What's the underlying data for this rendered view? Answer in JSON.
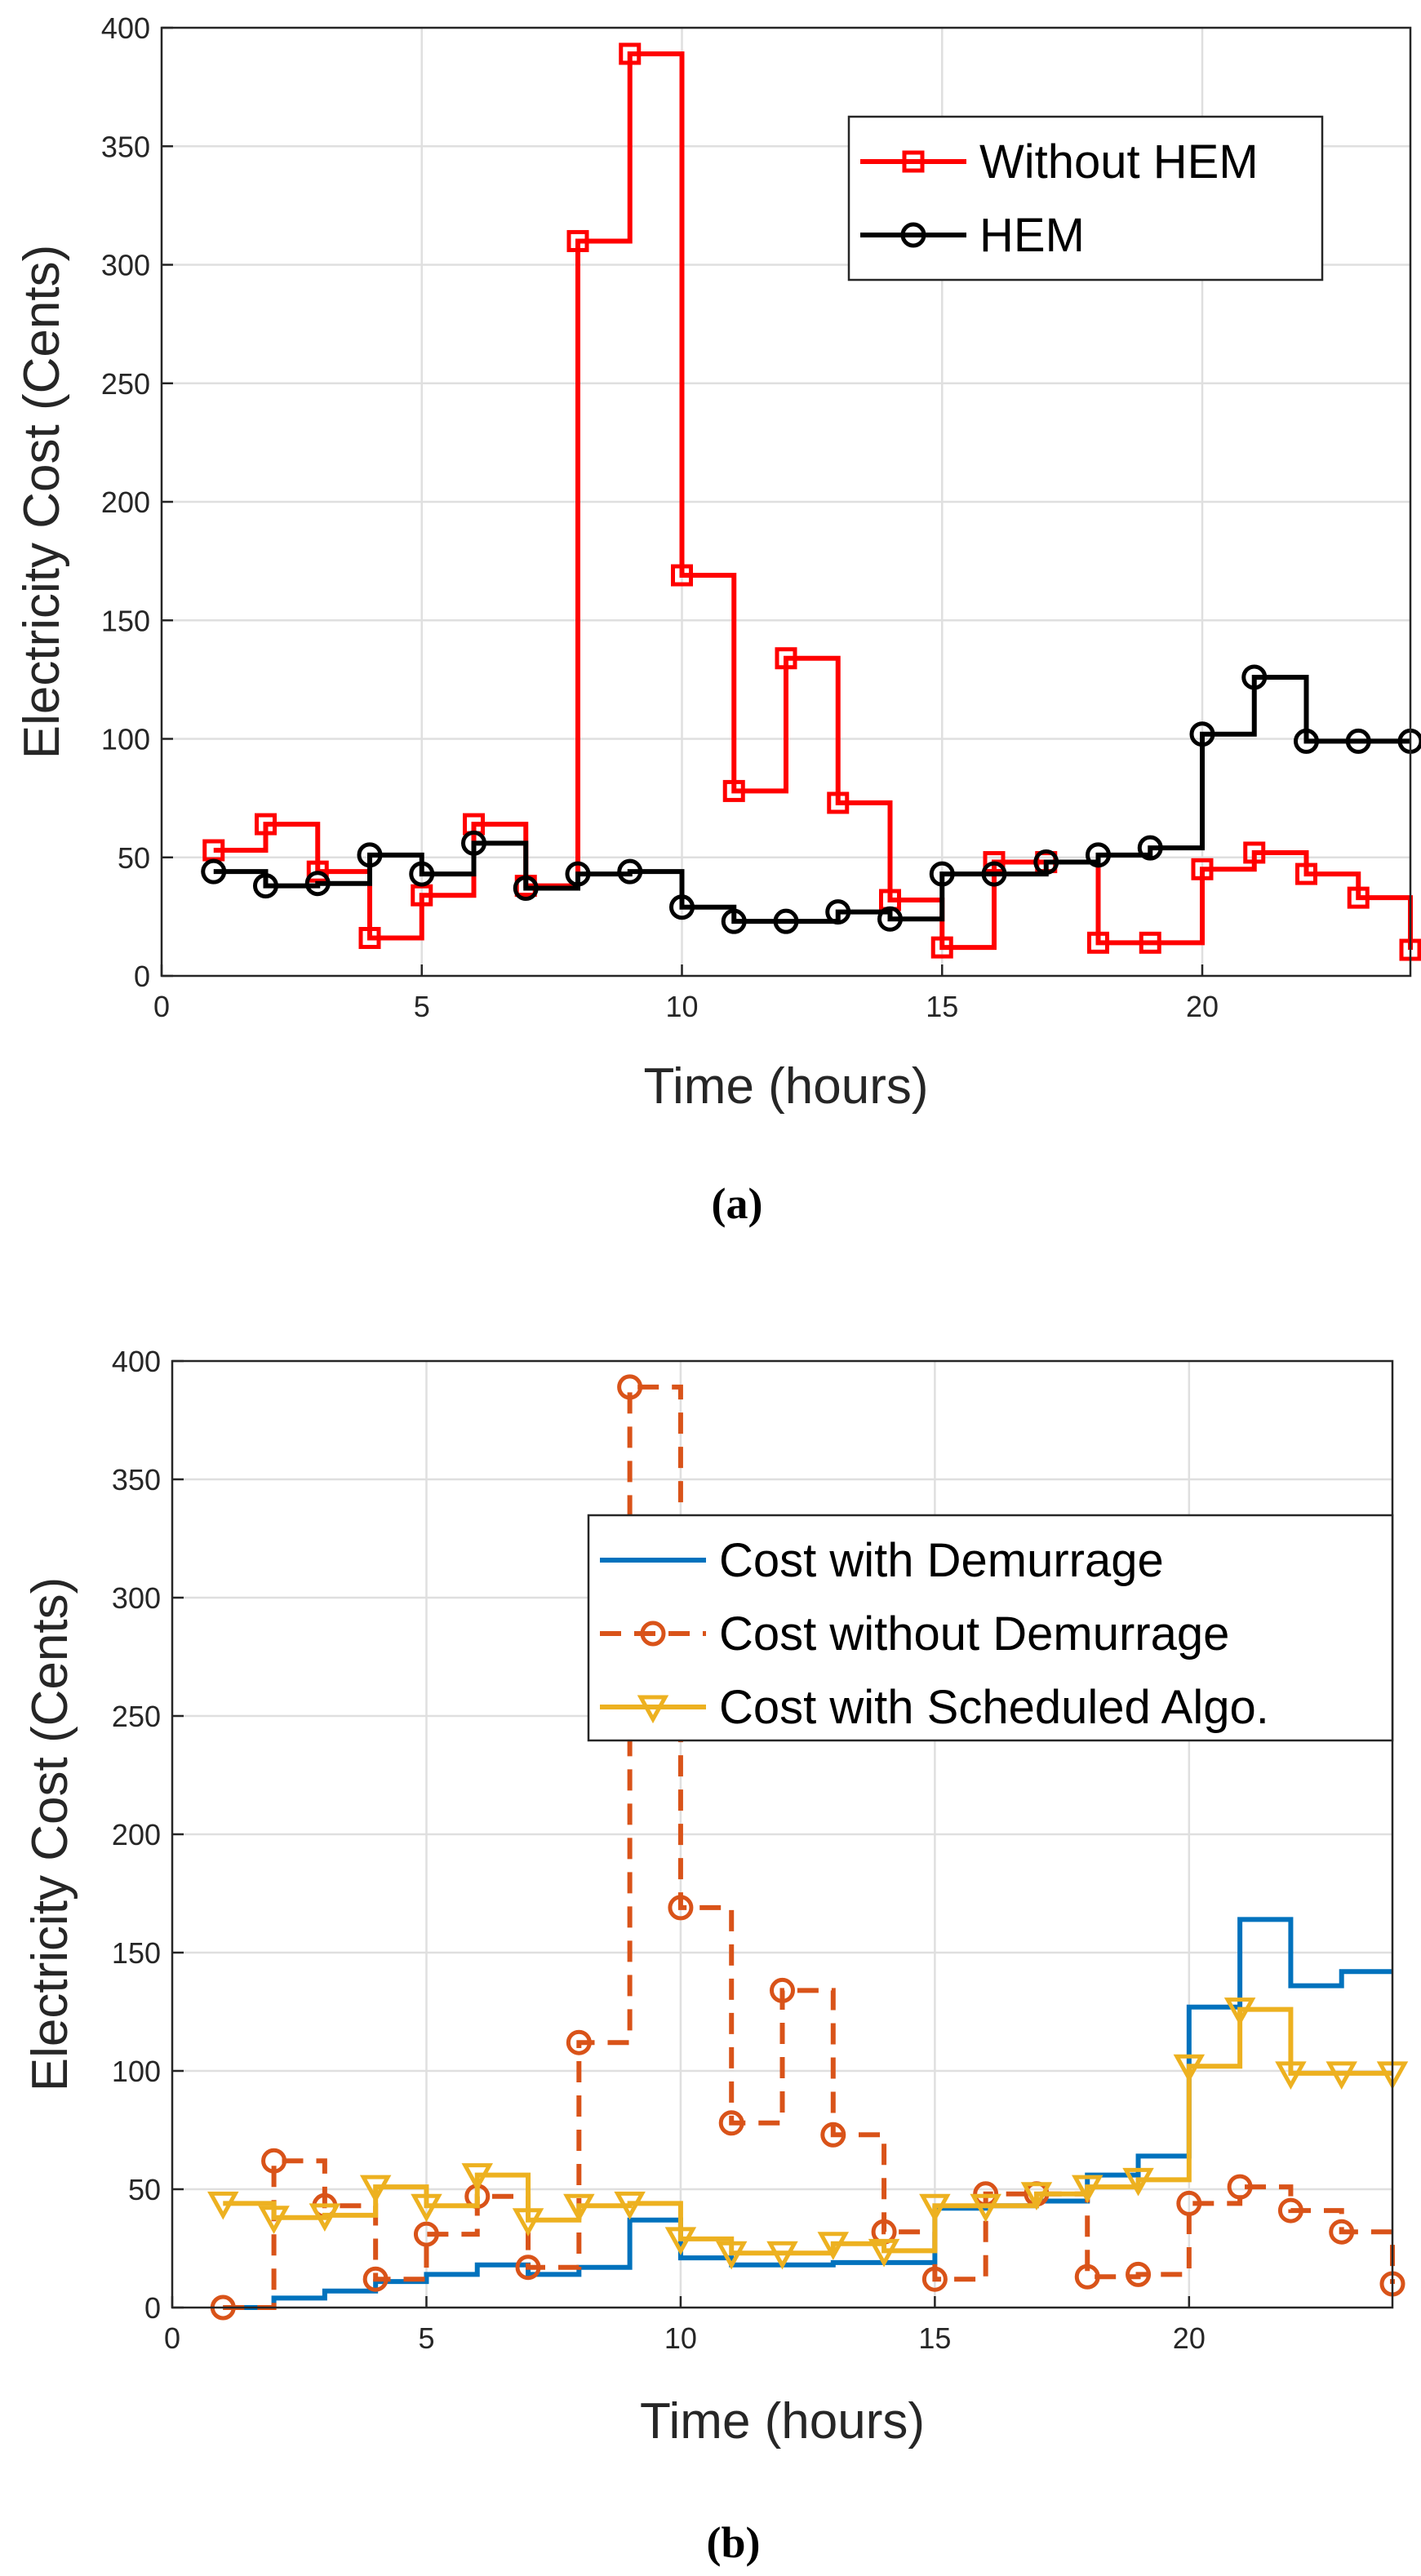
{
  "chart_data": [
    {
      "id": "a",
      "type": "line",
      "step": true,
      "caption": "(a)",
      "xlabel": "Time (hours)",
      "ylabel": "Electricity Cost (Cents)",
      "xlim": [
        0,
        24
      ],
      "ylim": [
        0,
        400
      ],
      "xticks": [
        0,
        5,
        10,
        15,
        20
      ],
      "yticks": [
        0,
        50,
        100,
        150,
        200,
        250,
        300,
        350,
        400
      ],
      "grid": true,
      "legend_position": "top-right",
      "x": [
        1,
        2,
        3,
        4,
        5,
        6,
        7,
        8,
        9,
        10,
        11,
        12,
        13,
        14,
        15,
        16,
        17,
        18,
        19,
        20,
        21,
        22,
        23,
        24
      ],
      "series": [
        {
          "name": "Without HEM",
          "color": "#ff0000",
          "marker": "square",
          "dash": "solid",
          "values": [
            53,
            64,
            44,
            16,
            34,
            64,
            38,
            310,
            389,
            169,
            78,
            134,
            73,
            32,
            12,
            48,
            48,
            14,
            14,
            45,
            52,
            43,
            33,
            11
          ]
        },
        {
          "name": "HEM",
          "color": "#000000",
          "marker": "circle",
          "dash": "solid",
          "values": [
            44,
            38,
            39,
            51,
            43,
            56,
            37,
            43,
            44,
            29,
            23,
            23,
            27,
            24,
            43,
            43,
            48,
            51,
            54,
            102,
            126,
            99,
            99,
            99
          ]
        }
      ]
    },
    {
      "id": "b",
      "type": "line",
      "step": true,
      "caption": "(b)",
      "xlabel": "Time (hours)",
      "ylabel": "Electricity Cost (Cents)",
      "xlim": [
        0,
        24
      ],
      "ylim": [
        0,
        400
      ],
      "xticks": [
        0,
        5,
        10,
        15,
        20
      ],
      "yticks": [
        0,
        50,
        100,
        150,
        200,
        250,
        300,
        350,
        400
      ],
      "grid": true,
      "legend_position": "top-right",
      "x": [
        1,
        2,
        3,
        4,
        5,
        6,
        7,
        8,
        9,
        10,
        11,
        12,
        13,
        14,
        15,
        16,
        17,
        18,
        19,
        20,
        21,
        22,
        23,
        24
      ],
      "series": [
        {
          "name": "Cost with Demurrage",
          "color": "#0072bd",
          "marker": "none",
          "dash": "solid",
          "values": [
            0,
            4,
            7,
            11,
            14,
            18,
            14,
            17,
            37,
            21,
            18,
            18,
            19,
            19,
            42,
            43,
            45,
            56,
            64,
            127,
            164,
            136,
            142,
            142
          ]
        },
        {
          "name": "Cost without Demurrage",
          "color": "#d95319",
          "marker": "circle",
          "dash": "dashed",
          "values": [
            0,
            62,
            43,
            12,
            31,
            47,
            17,
            112,
            389,
            169,
            78,
            134,
            73,
            32,
            12,
            48,
            48,
            13,
            14,
            44,
            51,
            41,
            32,
            10
          ]
        },
        {
          "name": "Cost with Scheduled Algo.",
          "color": "#edb120",
          "marker": "triangle-down",
          "dash": "solid",
          "values": [
            44,
            38,
            39,
            51,
            43,
            56,
            37,
            43,
            44,
            29,
            23,
            23,
            27,
            24,
            43,
            43,
            48,
            51,
            54,
            102,
            126,
            99,
            99,
            99
          ]
        }
      ]
    }
  ]
}
